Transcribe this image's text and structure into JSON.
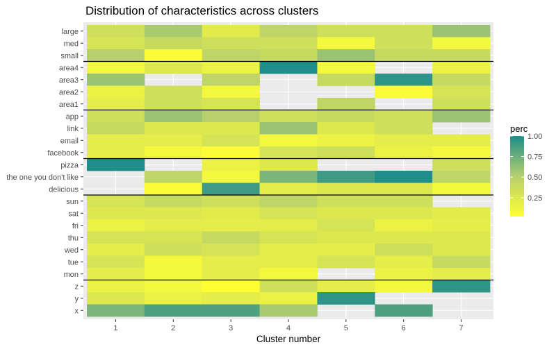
{
  "chart_data": {
    "type": "heatmap",
    "title": "Distribution of characteristics across clusters",
    "xlabel": "Cluster number",
    "ylabel": "",
    "x": [
      "1",
      "2",
      "3",
      "4",
      "5",
      "6",
      "7"
    ],
    "y": [
      "large",
      "med",
      "small",
      "area4",
      "area3",
      "area2",
      "area1",
      "app",
      "link",
      "email",
      "facebook",
      "pizza",
      "the one you don't like",
      "delicious",
      "sun",
      "sat",
      "fri",
      "thu",
      "wed",
      "tue",
      "mon",
      "z",
      "y",
      "x"
    ],
    "values": [
      [
        0.35,
        0.55,
        0.22,
        0.45,
        0.35,
        0.35,
        0.6
      ],
      [
        0.3,
        0.4,
        0.35,
        0.35,
        0.1,
        0.35,
        0.1
      ],
      [
        0.5,
        0.05,
        0.45,
        0.4,
        0.6,
        0.4,
        0.4
      ],
      [
        0.1,
        0.25,
        0.15,
        1.0,
        0.1,
        null,
        0.15
      ],
      [
        0.6,
        null,
        0.45,
        null,
        0.4,
        0.95,
        0.4
      ],
      [
        0.15,
        0.35,
        0.1,
        null,
        null,
        0.05,
        0.3
      ],
      [
        0.2,
        0.35,
        0.3,
        null,
        0.45,
        null,
        0.35
      ],
      [
        0.35,
        0.6,
        0.5,
        0.35,
        0.4,
        0.35,
        0.6
      ],
      [
        0.4,
        0.25,
        0.25,
        0.6,
        0.25,
        0.35,
        null
      ],
      [
        0.2,
        0.2,
        0.3,
        0.1,
        0.15,
        0.2,
        0.2
      ],
      [
        0.2,
        0.1,
        0.05,
        0.3,
        0.35,
        0.15,
        0.1
      ],
      [
        1.0,
        null,
        0.15,
        0.25,
        null,
        null,
        0.35
      ],
      [
        null,
        0.45,
        0.1,
        0.7,
        0.9,
        1.0,
        0.45
      ],
      [
        null,
        0.05,
        0.9,
        0.2,
        0.25,
        0.25,
        0.1
      ],
      [
        0.3,
        0.4,
        0.35,
        0.45,
        0.35,
        0.35,
        null
      ],
      [
        0.25,
        0.25,
        0.22,
        0.3,
        0.25,
        0.25,
        0.22
      ],
      [
        0.15,
        0.2,
        0.2,
        0.2,
        0.3,
        0.15,
        0.2
      ],
      [
        0.3,
        0.3,
        0.4,
        0.3,
        0.25,
        0.25,
        0.25
      ],
      [
        0.2,
        0.35,
        0.3,
        0.2,
        0.2,
        0.35,
        0.25
      ],
      [
        0.3,
        0.1,
        0.2,
        0.2,
        0.3,
        0.2,
        0.4
      ],
      [
        0.2,
        0.1,
        0.2,
        0.1,
        null,
        0.15,
        0.2
      ],
      [
        0.15,
        0.1,
        0.02,
        0.35,
        0.2,
        0.1,
        0.95
      ],
      [
        0.25,
        0.15,
        0.2,
        0.15,
        0.95,
        null,
        null
      ],
      [
        0.7,
        0.85,
        0.85,
        0.55,
        null,
        0.85,
        null
      ]
    ],
    "group_separators_after": [
      "small",
      "area1",
      "facebook",
      "delicious",
      "mon"
    ],
    "legend": {
      "title": "perc",
      "ticks": [
        "0.25",
        "0.50",
        "0.75",
        "1.00"
      ],
      "tick_values": [
        0.25,
        0.5,
        0.75,
        1.0
      ],
      "range": [
        0.02,
        1.0
      ],
      "placement": "right"
    },
    "colors": {
      "low": "#ffff33",
      "mid": "#b6cf6e",
      "high": "#1f8d8a",
      "panel": "#ebebeb",
      "grid": "#ffffff",
      "separator": "#000000"
    },
    "grid": true
  }
}
